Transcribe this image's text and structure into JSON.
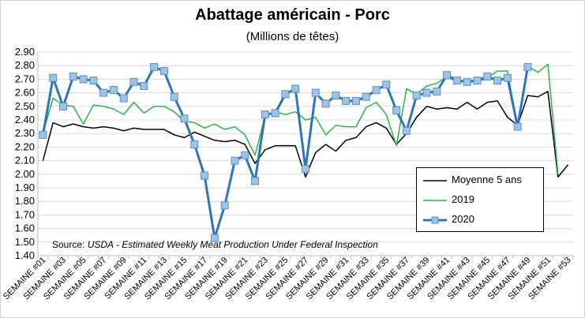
{
  "chart_data": {
    "type": "line",
    "title": "Abattage américain - Porc",
    "subtitle": "(Millions de têtes)",
    "source_prefix": "Source: ",
    "source_text": "USDA - Estimated Weekly Meat Production Under Federal Inspection",
    "ylim": [
      1.4,
      2.9
    ],
    "yticks": [
      "1.40",
      "1.50",
      "1.60",
      "1.70",
      "1.80",
      "1.90",
      "2.00",
      "2.10",
      "2.20",
      "2.30",
      "2.40",
      "2.50",
      "2.60",
      "2.70",
      "2.80",
      "2.90"
    ],
    "xtick_labels": [
      "SEMAINE #01",
      "SEMAINE #03",
      "SEMAINE #05",
      "SEMAINE #07",
      "SEMAINE #09",
      "SEMAINE #11",
      "SEMAINE #13",
      "SEMAINE #15",
      "SEMAINE #17",
      "SEMAINE #19",
      "SEMAINE #21",
      "SEMAINE #23",
      "SEMAINE #25",
      "SEMAINE #27",
      "SEMAINE #29",
      "SEMAINE #31",
      "SEMAINE #33",
      "SEMAINE #35",
      "SEMAINE #37",
      "SEMAINE #39",
      "SEMAINE #41",
      "SEMAINE #43",
      "SEMAINE #45",
      "SEMAINE #47",
      "SEMAINE #49",
      "SEMAINE #51",
      "SEMAINE #53"
    ],
    "weeks": 53,
    "grid": "horizontal",
    "legend_position": "lower-right",
    "series": [
      {
        "name": "Moyenne 5 ans",
        "color": "#000000",
        "values": [
          2.1,
          2.38,
          2.35,
          2.37,
          2.35,
          2.34,
          2.35,
          2.34,
          2.32,
          2.34,
          2.33,
          2.33,
          2.33,
          2.29,
          2.27,
          2.31,
          2.28,
          2.25,
          2.24,
          2.25,
          2.22,
          2.08,
          2.18,
          2.21,
          2.21,
          2.21,
          1.98,
          2.16,
          2.22,
          2.17,
          2.25,
          2.27,
          2.35,
          2.38,
          2.34,
          2.22,
          2.3,
          2.42,
          2.5,
          2.48,
          2.49,
          2.48,
          2.53,
          2.48,
          2.53,
          2.54,
          2.42,
          2.36,
          2.58,
          2.57,
          2.61,
          1.98,
          2.07
        ]
      },
      {
        "name": "2019",
        "color": "#2db34a",
        "values": [
          2.3,
          2.56,
          2.51,
          2.5,
          2.37,
          2.51,
          2.5,
          2.48,
          2.44,
          2.53,
          2.45,
          2.5,
          2.5,
          2.46,
          2.39,
          2.38,
          2.34,
          2.37,
          2.33,
          2.35,
          2.29,
          2.14,
          2.43,
          2.46,
          2.44,
          2.46,
          2.4,
          2.42,
          2.29,
          2.36,
          2.35,
          2.35,
          2.49,
          2.53,
          2.44,
          2.21,
          2.63,
          2.59,
          2.65,
          2.67,
          2.72,
          2.68,
          2.7,
          2.68,
          2.71,
          2.76,
          2.76,
          2.34,
          2.8,
          2.75,
          2.81,
          2.0,
          null
        ]
      },
      {
        "name": "2020",
        "color": "#2e75b6",
        "marker_fill": "#9dc3e6",
        "values": [
          2.29,
          2.71,
          2.5,
          2.72,
          2.7,
          2.69,
          2.6,
          2.62,
          2.56,
          2.68,
          2.65,
          2.79,
          2.76,
          2.57,
          2.41,
          2.22,
          1.99,
          1.53,
          1.77,
          2.1,
          2.14,
          1.95,
          2.44,
          2.45,
          2.59,
          2.63,
          2.04,
          2.6,
          2.52,
          2.58,
          2.54,
          2.54,
          2.57,
          2.62,
          2.66,
          2.47,
          2.32,
          2.58,
          2.6,
          2.61,
          2.73,
          2.69,
          2.68,
          2.69,
          2.72,
          2.69,
          2.71,
          2.35,
          2.79,
          null,
          null,
          null,
          null
        ]
      }
    ]
  }
}
